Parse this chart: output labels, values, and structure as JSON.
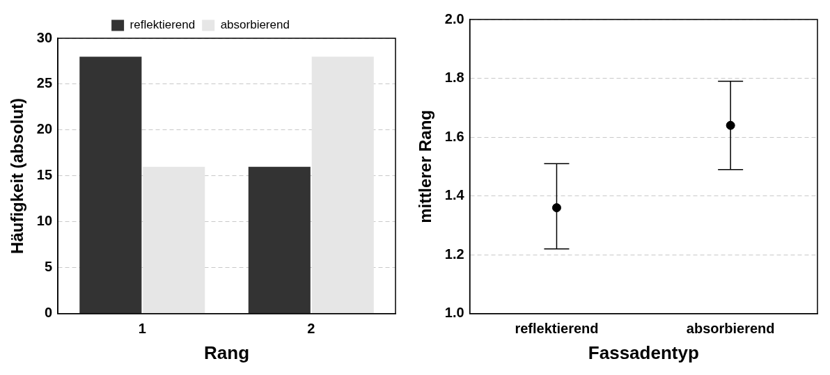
{
  "chart_data": [
    {
      "type": "bar",
      "xlabel": "Rang",
      "ylabel": "Häufigkeit (absolut)",
      "categories": [
        "1",
        "2"
      ],
      "series": [
        {
          "name": "reflektierend",
          "color": "#333333",
          "values": [
            28,
            16
          ]
        },
        {
          "name": "absorbierend",
          "color": "#e6e6e6",
          "values": [
            16,
            28
          ]
        }
      ],
      "ylim": [
        0,
        30
      ],
      "yticks": [
        0,
        5,
        10,
        15,
        20,
        25,
        30
      ],
      "grid": "y",
      "legend": "top"
    },
    {
      "type": "scatter",
      "xlabel": "Fassadentyp",
      "ylabel": "mittlerer Rang",
      "categories": [
        "reflektierend",
        "absorbierend"
      ],
      "series": [
        {
          "color": "#000000",
          "values": [
            1.36,
            1.64
          ],
          "errors": [
            [
              1.22,
              1.51
            ],
            [
              1.49,
              1.79
            ]
          ]
        }
      ],
      "ylim": [
        1.0,
        2.0
      ],
      "yticks": [
        {
          "value": 1.0,
          "label": "1.0"
        },
        1.2,
        1.4,
        1.6,
        1.8,
        {
          "value": 2.0,
          "label": "2.0"
        }
      ],
      "grid": "y",
      "marker": "circle"
    }
  ]
}
